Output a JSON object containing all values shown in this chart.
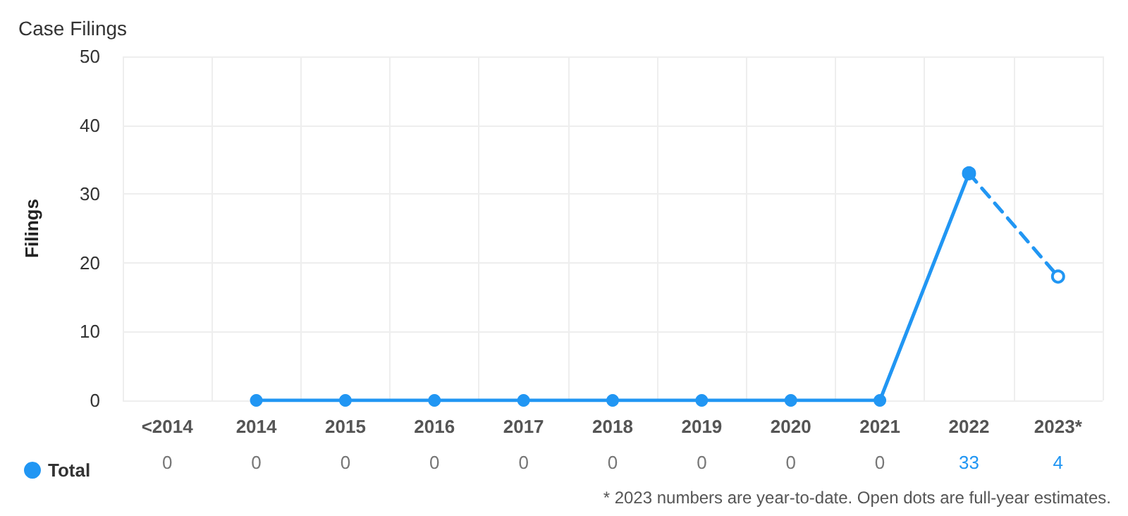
{
  "chart_data": {
    "type": "line",
    "title": "Case Filings",
    "ylabel": "Filings",
    "categories": [
      "<2014",
      "2014",
      "2015",
      "2016",
      "2017",
      "2018",
      "2019",
      "2020",
      "2021",
      "2022",
      "2023*"
    ],
    "series": [
      {
        "name": "Total",
        "color": "#2196f3",
        "line_style": "solid",
        "values": [
          null,
          0,
          0,
          0,
          0,
          0,
          0,
          0,
          0,
          33,
          null
        ],
        "value_labels": [
          "0",
          "0",
          "0",
          "0",
          "0",
          "0",
          "0",
          "0",
          "0",
          "33",
          "4"
        ]
      },
      {
        "color": "#2196f3",
        "line_style": "dashed",
        "values": [
          null,
          null,
          null,
          null,
          null,
          null,
          null,
          null,
          null,
          33,
          18
        ]
      }
    ],
    "ylim": [
      0,
      50
    ],
    "yticks": [
      0,
      10,
      20,
      30,
      40,
      50
    ],
    "grid": true,
    "legend": "bottom left",
    "marker": "circle",
    "annotations": [
      "* 2023 numbers are year-to-date. Open dots are full-year estimates."
    ]
  }
}
